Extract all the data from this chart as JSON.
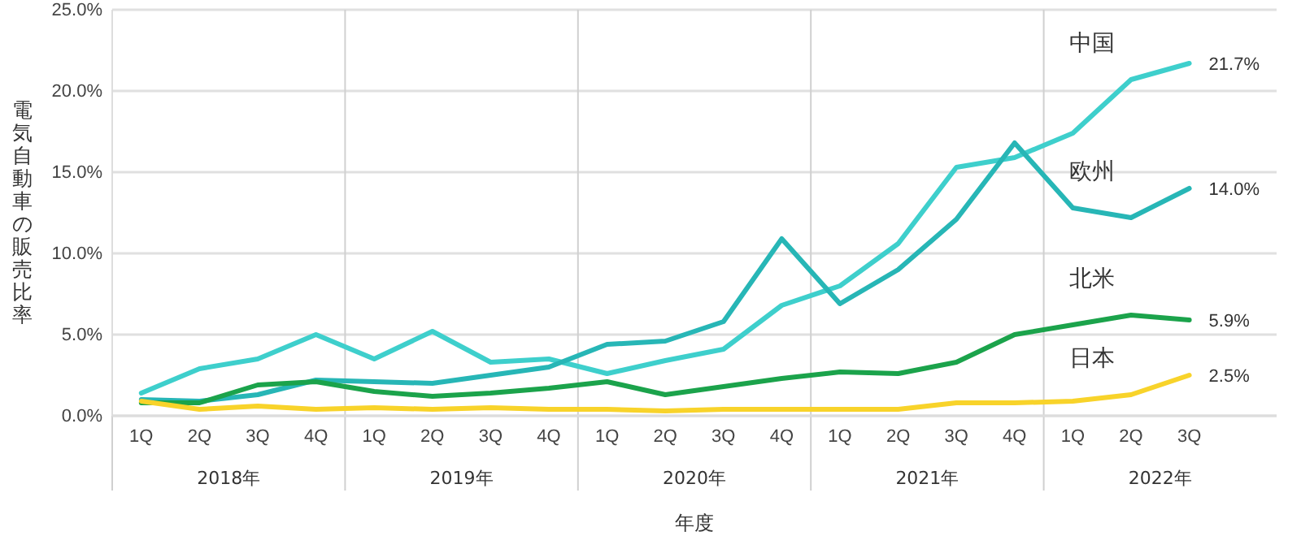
{
  "chart_data": {
    "type": "line",
    "xlabel": "年度",
    "ylabel": "電気自動車の販売比率",
    "categories": [
      "1Q",
      "2Q",
      "3Q",
      "4Q",
      "1Q",
      "2Q",
      "3Q",
      "4Q",
      "1Q",
      "2Q",
      "3Q",
      "4Q",
      "1Q",
      "2Q",
      "3Q",
      "4Q",
      "1Q",
      "2Q",
      "3Q",
      null
    ],
    "annotations": [
      "2018年",
      "2019年",
      "2020年",
      "2021年",
      "2022年"
    ],
    "ylim": [
      0,
      25
    ],
    "yticks": [
      {
        "value": 0,
        "label": "0.0%"
      },
      {
        "value": 5,
        "label": "5.0%"
      },
      {
        "value": 10,
        "label": "10.0%"
      },
      {
        "value": 15,
        "label": "15.0%"
      },
      {
        "value": 20,
        "label": "20.0%"
      },
      {
        "value": 25,
        "label": "25.0%"
      }
    ],
    "grid": "y",
    "marker": "none",
    "line_style": "solid",
    "series": [
      {
        "name": "中国",
        "color": "#3ecfcc",
        "values": [
          1.4,
          2.9,
          3.5,
          5.0,
          3.5,
          5.2,
          3.3,
          3.5,
          2.6,
          3.4,
          4.1,
          6.8,
          8.0,
          10.6,
          15.3,
          15.9,
          17.4,
          20.7,
          21.7,
          null
        ],
        "value_labels": [
          null,
          null,
          null,
          null,
          null,
          null,
          null,
          null,
          null,
          null,
          null,
          null,
          null,
          null,
          null,
          null,
          null,
          null,
          "21.7%",
          null
        ]
      },
      {
        "name": "欧州",
        "color": "#27b6b6",
        "values": [
          1.0,
          0.9,
          1.3,
          2.2,
          2.1,
          2.0,
          2.5,
          3.0,
          4.4,
          4.6,
          5.8,
          10.9,
          6.9,
          9.0,
          12.1,
          16.8,
          12.8,
          12.2,
          14.0,
          null
        ],
        "value_labels": [
          null,
          null,
          null,
          null,
          null,
          null,
          null,
          null,
          null,
          null,
          null,
          null,
          null,
          null,
          null,
          null,
          null,
          null,
          "14.0%",
          null
        ]
      },
      {
        "name": "北米",
        "color": "#1ba34b",
        "values": [
          0.8,
          0.8,
          1.9,
          2.1,
          1.5,
          1.2,
          1.4,
          1.7,
          2.1,
          1.3,
          1.8,
          2.3,
          2.7,
          2.6,
          3.3,
          5.0,
          5.6,
          6.2,
          5.9,
          null
        ],
        "value_labels": [
          null,
          null,
          null,
          null,
          null,
          null,
          null,
          null,
          null,
          null,
          null,
          null,
          null,
          null,
          null,
          null,
          null,
          null,
          "5.9%",
          null
        ]
      },
      {
        "name": "日本",
        "color": "#f8d32a",
        "values": [
          0.9,
          0.4,
          0.6,
          0.4,
          0.5,
          0.4,
          0.5,
          0.4,
          0.4,
          0.3,
          0.4,
          0.4,
          0.4,
          0.4,
          0.8,
          0.8,
          0.9,
          1.3,
          2.5,
          null
        ],
        "value_labels": [
          null,
          null,
          null,
          null,
          null,
          null,
          null,
          null,
          null,
          null,
          null,
          null,
          null,
          null,
          null,
          null,
          null,
          null,
          "2.5%",
          null
        ]
      }
    ]
  }
}
